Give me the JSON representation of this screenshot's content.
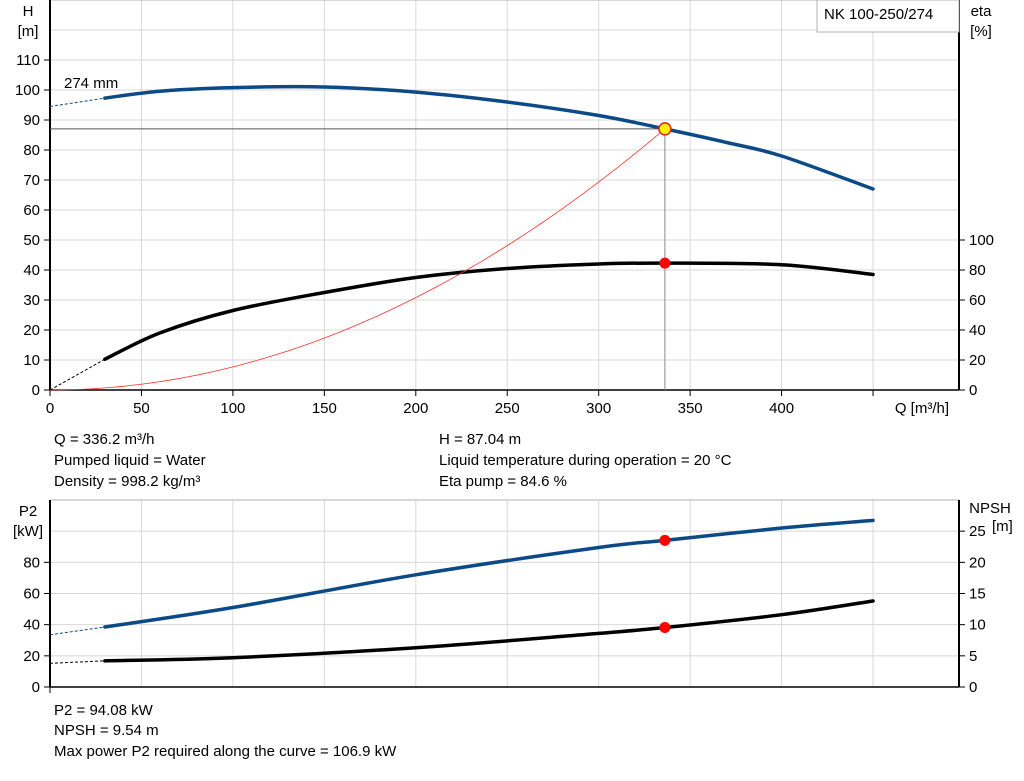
{
  "chart_data": [
    {
      "type": "line",
      "model_label": "NK 100-250/274",
      "impeller_label": "274 mm",
      "xlabel": "Q [m³/h]",
      "ylabel_left": [
        "H",
        "[m]"
      ],
      "ylabel_right": [
        "eta",
        "[%]"
      ],
      "xlim": [
        0,
        497
      ],
      "ylim_left": [
        0,
        130
      ],
      "ylim_right_eta": [
        0,
        260
      ],
      "x_ticks": [
        "0",
        "50",
        "100",
        "150",
        "200",
        "250",
        "300",
        "350",
        "400"
      ],
      "y_ticks_left": [
        "0",
        "10",
        "20",
        "30",
        "40",
        "50",
        "60",
        "70",
        "80",
        "90",
        "100",
        "110"
      ],
      "y_ticks_right": [
        "0",
        "20",
        "40",
        "60",
        "80",
        "100"
      ],
      "grid": true,
      "series": [
        {
          "id": "H",
          "color": "#0b4a86",
          "axis": "left",
          "x": [
            30,
            60,
            100,
            150,
            200,
            250,
            300,
            336.2,
            370,
            400,
            450
          ],
          "y": [
            97.3,
            99.6,
            100.8,
            101,
            99.3,
            96,
            91.5,
            87.04,
            82.5,
            78,
            67
          ],
          "extrapolated": {
            "x": [
              0,
              30
            ],
            "y": [
              94.5,
              97.3
            ]
          }
        },
        {
          "id": "eta",
          "color": "#000000",
          "axis": "right",
          "x": [
            30,
            60,
            100,
            150,
            200,
            250,
            300,
            336.2,
            400,
            450
          ],
          "y": [
            20.5,
            38,
            53,
            65,
            75,
            81,
            84,
            84.6,
            83.5,
            77
          ],
          "extrapolated": {
            "x": [
              0,
              30
            ],
            "y": [
              0,
              20.5
            ]
          }
        },
        {
          "id": "system",
          "color": "#ff3030",
          "axis": "left",
          "x": [
            0,
            336.2
          ],
          "quadratic_through": [
            336.2,
            87.04
          ]
        }
      ],
      "operating_point": {
        "q": 336.2,
        "h": 87.04,
        "eta": 84.6
      }
    },
    {
      "type": "line",
      "ylabel_left": [
        "P2",
        "[kW]"
      ],
      "ylabel_right": [
        "NPSH",
        "[m]"
      ],
      "xlim": [
        0,
        497
      ],
      "ylim_left": [
        0,
        120
      ],
      "ylim_right": [
        0,
        30
      ],
      "y_ticks_left": [
        "0",
        "20",
        "40",
        "60",
        "80"
      ],
      "y_ticks_right": [
        "0",
        "5",
        "10",
        "15",
        "20",
        "25"
      ],
      "grid": true,
      "series": [
        {
          "id": "P2",
          "color": "#0b4a86",
          "axis": "left",
          "x": [
            30,
            100,
            200,
            300,
            336.2,
            400,
            450
          ],
          "y": [
            38.5,
            51,
            72,
            89.5,
            94.08,
            102,
            106.9
          ],
          "extrapolated": {
            "x": [
              0,
              30
            ],
            "y": [
              33.5,
              38.5
            ]
          }
        },
        {
          "id": "NPSH",
          "color": "#000000",
          "axis": "right",
          "x": [
            30,
            100,
            200,
            300,
            336.2,
            400,
            450
          ],
          "y": [
            4.2,
            4.7,
            6.3,
            8.6,
            9.54,
            11.6,
            13.8
          ],
          "extrapolated": {
            "x": [
              0,
              30
            ],
            "y": [
              3.8,
              4.2
            ]
          }
        }
      ],
      "operating_point": {
        "q": 336.2,
        "p2": 94.08,
        "npsh": 9.54
      }
    }
  ],
  "info_top": {
    "q": "Q = 336.2 m³/h",
    "liquid": "Pumped liquid = Water",
    "density": "Density = 998.2 kg/m³",
    "h": "H = 87.04 m",
    "temp": "Liquid temperature during operation = 20 °C",
    "eta": "Eta pump = 84.6 %"
  },
  "info_bottom": {
    "p2": "P2 = 94.08 kW",
    "npsh": "NPSH = 9.54 m",
    "maxp2": "Max power P2 required along the curve = 106.9 kW"
  }
}
